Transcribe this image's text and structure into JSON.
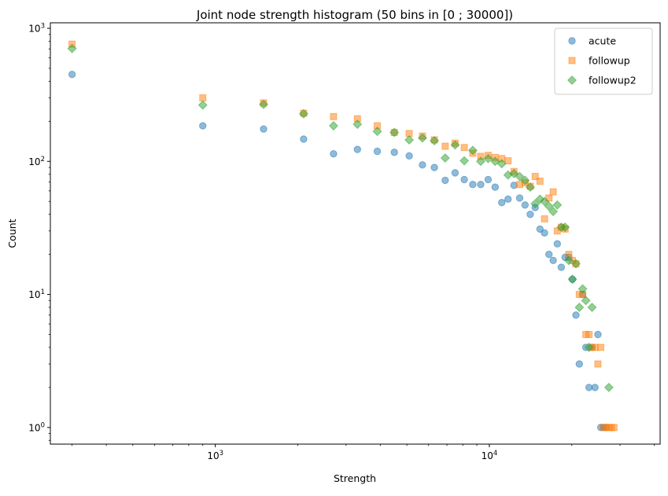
{
  "chart_data": {
    "type": "scatter",
    "title": "Joint node strength histogram (50 bins in [0 ; 30000])",
    "xlabel": "Strength",
    "ylabel": "Count",
    "xscale": "log",
    "yscale": "log",
    "xlim": [
      250,
      42000
    ],
    "ylim": [
      0.75,
      1100
    ],
    "x_ticks": [
      {
        "value": 1000,
        "base": "10",
        "exp": "3"
      },
      {
        "value": 10000,
        "base": "10",
        "exp": "4"
      }
    ],
    "y_ticks": [
      {
        "value": 1,
        "base": "10",
        "exp": "0"
      },
      {
        "value": 10,
        "base": "10",
        "exp": "1"
      },
      {
        "value": 100,
        "base": "10",
        "exp": "2"
      },
      {
        "value": 1000,
        "base": "10",
        "exp": "3"
      }
    ],
    "grid": false,
    "legend_position": "top-right",
    "series": [
      {
        "name": "acute",
        "marker": "circle",
        "color": "#1f77b4",
        "points": [
          [
            300,
            450
          ],
          [
            900,
            185
          ],
          [
            1500,
            175
          ],
          [
            2100,
            147
          ],
          [
            2700,
            114
          ],
          [
            3300,
            123
          ],
          [
            3900,
            119
          ],
          [
            4500,
            117
          ],
          [
            5100,
            110
          ],
          [
            5700,
            94
          ],
          [
            6300,
            90
          ],
          [
            6900,
            72
          ],
          [
            7500,
            82
          ],
          [
            8100,
            73
          ],
          [
            8700,
            67
          ],
          [
            9300,
            67
          ],
          [
            9900,
            73
          ],
          [
            10500,
            64
          ],
          [
            11100,
            49
          ],
          [
            11700,
            52
          ],
          [
            12300,
            66
          ],
          [
            12900,
            53
          ],
          [
            13500,
            47
          ],
          [
            14100,
            40
          ],
          [
            14700,
            45
          ],
          [
            15300,
            31
          ],
          [
            15900,
            29
          ],
          [
            16500,
            20
          ],
          [
            17100,
            18
          ],
          [
            17700,
            24
          ],
          [
            18300,
            16
          ],
          [
            18900,
            19
          ],
          [
            19500,
            19
          ],
          [
            20100,
            13
          ],
          [
            20700,
            7
          ],
          [
            21300,
            3
          ],
          [
            21900,
            10
          ],
          [
            22500,
            4
          ],
          [
            23100,
            2
          ],
          [
            23700,
            4
          ],
          [
            24300,
            2
          ],
          [
            24900,
            5
          ],
          [
            25500,
            1
          ],
          [
            26100,
            1
          ],
          [
            26700,
            1
          ]
        ]
      },
      {
        "name": "followup",
        "marker": "square",
        "color": "#ff7f0e",
        "points": [
          [
            300,
            760
          ],
          [
            900,
            300
          ],
          [
            1500,
            275
          ],
          [
            2100,
            230
          ],
          [
            2700,
            217
          ],
          [
            3300,
            209
          ],
          [
            3900,
            185
          ],
          [
            4500,
            165
          ],
          [
            5100,
            162
          ],
          [
            5700,
            155
          ],
          [
            6300,
            145
          ],
          [
            6900,
            130
          ],
          [
            7500,
            137
          ],
          [
            8100,
            127
          ],
          [
            8700,
            115
          ],
          [
            9300,
            109
          ],
          [
            9900,
            111
          ],
          [
            10500,
            107
          ],
          [
            11100,
            105
          ],
          [
            11700,
            101
          ],
          [
            12300,
            84
          ],
          [
            12900,
            67
          ],
          [
            13500,
            69
          ],
          [
            14100,
            65
          ],
          [
            14700,
            77
          ],
          [
            15300,
            71
          ],
          [
            15900,
            37
          ],
          [
            16500,
            53
          ],
          [
            17100,
            59
          ],
          [
            17700,
            30
          ],
          [
            18300,
            32
          ],
          [
            18900,
            31
          ],
          [
            19500,
            20
          ],
          [
            20100,
            18
          ],
          [
            20700,
            17
          ],
          [
            21300,
            10
          ],
          [
            21900,
            10
          ],
          [
            22500,
            5
          ],
          [
            23100,
            5
          ],
          [
            23700,
            4
          ],
          [
            24300,
            4
          ],
          [
            24900,
            3
          ],
          [
            25500,
            4
          ],
          [
            26100,
            1
          ],
          [
            26700,
            1
          ],
          [
            27300,
            1
          ],
          [
            27900,
            1
          ],
          [
            28500,
            1
          ]
        ]
      },
      {
        "name": "followup2",
        "marker": "diamond",
        "color": "#2ca02c",
        "points": [
          [
            300,
            705
          ],
          [
            900,
            265
          ],
          [
            1500,
            268
          ],
          [
            2100,
            228
          ],
          [
            2700,
            185
          ],
          [
            3300,
            190
          ],
          [
            3900,
            168
          ],
          [
            4500,
            165
          ],
          [
            5100,
            145
          ],
          [
            5700,
            150
          ],
          [
            6300,
            143
          ],
          [
            6900,
            106
          ],
          [
            7500,
            133
          ],
          [
            8100,
            101
          ],
          [
            8700,
            121
          ],
          [
            9300,
            100
          ],
          [
            9900,
            105
          ],
          [
            10500,
            100
          ],
          [
            11100,
            96
          ],
          [
            11700,
            79
          ],
          [
            12300,
            81
          ],
          [
            12900,
            77
          ],
          [
            13500,
            72
          ],
          [
            14100,
            64
          ],
          [
            14700,
            48
          ],
          [
            15300,
            52
          ],
          [
            15900,
            50
          ],
          [
            16500,
            46
          ],
          [
            17100,
            42
          ],
          [
            17700,
            47
          ],
          [
            18300,
            32
          ],
          [
            18900,
            32
          ],
          [
            19500,
            18
          ],
          [
            20100,
            13
          ],
          [
            20700,
            17
          ],
          [
            21300,
            8
          ],
          [
            21900,
            11
          ],
          [
            22500,
            9
          ],
          [
            23100,
            4
          ],
          [
            23700,
            8
          ],
          [
            27300,
            2
          ]
        ]
      }
    ]
  }
}
